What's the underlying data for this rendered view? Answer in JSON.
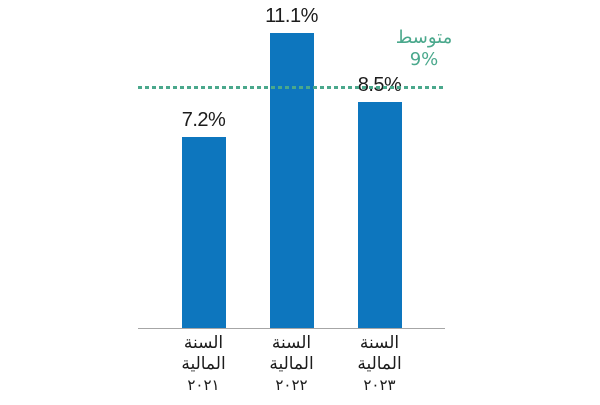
{
  "chart_data": {
    "type": "bar",
    "title": "",
    "xlabel": "",
    "ylabel": "",
    "categories": [
      "السنة المالية ٢٠٢١",
      "السنة المالية ٢٠٢٢",
      "السنة المالية ٢٠٢٣"
    ],
    "category_lines": [
      [
        "السنة",
        "المالية",
        "٢٠٢١"
      ],
      [
        "السنة",
        "المالية",
        "٢٠٢٢"
      ],
      [
        "السنة",
        "المالية",
        "٢٠٢٣"
      ]
    ],
    "values": [
      7.2,
      11.1,
      8.5
    ],
    "value_labels": [
      "7.2%",
      "11.1%",
      "8.5%"
    ],
    "reference_line": {
      "label": "متوسط",
      "value": 9,
      "value_label": "9%"
    },
    "ylim": [
      0,
      12.3
    ],
    "grid": false,
    "legend": false,
    "colors": {
      "bar": "#0d76be",
      "reference": "#4aa88c",
      "axis": "#a6a6a6",
      "value_text": "#1c1c1c"
    }
  }
}
